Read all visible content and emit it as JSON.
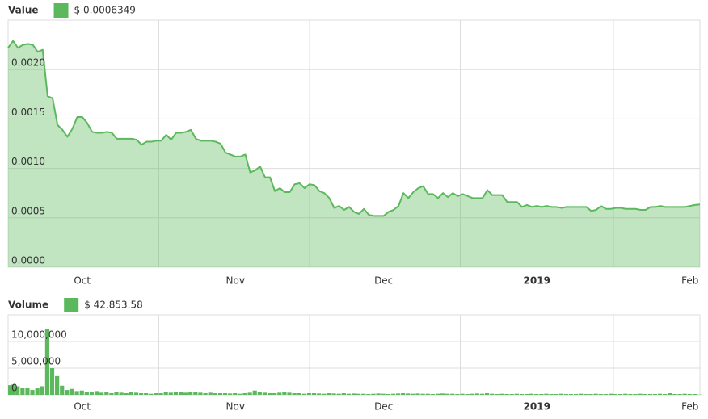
{
  "chart_data": [
    {
      "type": "area",
      "legend_title": "Value",
      "series": [
        {
          "name": "Value",
          "color": "#5cb85c",
          "current_label": "$  0.0006349",
          "values": [
            0.00222,
            0.00229,
            0.00222,
            0.00225,
            0.00226,
            0.00225,
            0.00218,
            0.0022,
            0.00173,
            0.00171,
            0.00144,
            0.00139,
            0.00132,
            0.0014,
            0.00152,
            0.00152,
            0.00146,
            0.00137,
            0.00136,
            0.00136,
            0.00137,
            0.00136,
            0.0013,
            0.0013,
            0.0013,
            0.0013,
            0.00129,
            0.00124,
            0.00127,
            0.00127,
            0.00128,
            0.00128,
            0.00134,
            0.00129,
            0.00136,
            0.00136,
            0.00137,
            0.00139,
            0.0013,
            0.00128,
            0.00128,
            0.00128,
            0.00127,
            0.00125,
            0.00116,
            0.00114,
            0.00112,
            0.00112,
            0.00114,
            0.00096,
            0.00098,
            0.00102,
            0.00091,
            0.00091,
            0.00077,
            0.0008,
            0.00076,
            0.00076,
            0.00084,
            0.00085,
            0.0008,
            0.00084,
            0.00083,
            0.00077,
            0.00075,
            0.0007,
            0.0006,
            0.00062,
            0.00058,
            0.00061,
            0.00056,
            0.00054,
            0.00059,
            0.00053,
            0.00052,
            0.00052,
            0.00052,
            0.00056,
            0.00058,
            0.00062,
            0.00075,
            0.0007,
            0.00076,
            0.0008,
            0.00082,
            0.00074,
            0.00074,
            0.0007,
            0.00075,
            0.00071,
            0.00075,
            0.00072,
            0.00074,
            0.00072,
            0.0007,
            0.0007,
            0.0007,
            0.00078,
            0.00073,
            0.00073,
            0.00073,
            0.00066,
            0.00066,
            0.00066,
            0.00061,
            0.00063,
            0.00061,
            0.00062,
            0.00061,
            0.00062,
            0.00061,
            0.00061,
            0.0006,
            0.00061,
            0.00061,
            0.00061,
            0.00061,
            0.00061,
            0.00057,
            0.00058,
            0.00062,
            0.00059,
            0.00059,
            0.0006,
            0.0006,
            0.00059,
            0.00059,
            0.00059,
            0.00058,
            0.00058,
            0.00061,
            0.00061,
            0.00062,
            0.00061,
            0.00061,
            0.00061,
            0.00061,
            0.00061,
            0.00062,
            0.00063,
            0.0006349
          ]
        }
      ],
      "categories": [
        null,
        null,
        null,
        null,
        null,
        null,
        null,
        null,
        null,
        null,
        null,
        null,
        null,
        null,
        null,
        "Oct",
        null,
        null,
        null,
        null,
        null,
        null,
        null,
        null,
        null,
        null,
        null,
        null,
        null,
        null,
        null,
        null,
        null,
        null,
        null,
        null,
        null,
        null,
        null,
        null,
        null,
        null,
        null,
        null,
        null,
        null,
        "Nov",
        null,
        null,
        null,
        null,
        null,
        null,
        null,
        null,
        null,
        null,
        null,
        null,
        null,
        null,
        null,
        null,
        null,
        null,
        null,
        null,
        null,
        null,
        null,
        null,
        null,
        null,
        null,
        null,
        null,
        "Dec",
        null,
        null,
        null,
        null,
        null,
        null,
        null,
        null,
        null,
        null,
        null,
        null,
        null,
        null,
        null,
        null,
        null,
        null,
        null,
        null,
        null,
        null,
        null,
        null,
        null,
        null,
        null,
        null,
        null,
        null,
        "2019",
        null,
        null,
        null,
        null,
        null,
        null,
        null,
        null,
        null,
        null,
        null,
        null,
        null,
        null,
        null,
        null,
        null,
        null,
        null,
        null,
        null,
        null,
        null,
        null,
        null,
        null,
        null,
        null,
        null,
        null,
        "Feb",
        null,
        null
      ],
      "ylim": [
        0,
        0.0025
      ],
      "yticks": [
        {
          "value": 0,
          "label": "0.0000"
        },
        0.0005,
        {
          "value": 0.001,
          "label": "0.0010"
        },
        0.0015,
        {
          "value": 0.002,
          "label": "0.0020"
        }
      ],
      "grid": true
    },
    {
      "type": "bar",
      "legend_title": "Volume",
      "series": [
        {
          "name": "Volume",
          "color": "#5cb85c",
          "current_label": "$  42,853.58",
          "values": [
            1800000,
            1900000,
            1600000,
            1300000,
            1300000,
            900000,
            1200000,
            1600000,
            12300000,
            5000000,
            3500000,
            1700000,
            900000,
            1100000,
            700000,
            800000,
            600000,
            500000,
            700000,
            400000,
            500000,
            300000,
            600000,
            400000,
            300000,
            500000,
            400000,
            300000,
            300000,
            200000,
            300000,
            300000,
            500000,
            400000,
            600000,
            500000,
            400000,
            600000,
            500000,
            400000,
            300000,
            400000,
            300000,
            300000,
            300000,
            250000,
            300000,
            200000,
            300000,
            400000,
            800000,
            600000,
            400000,
            300000,
            300000,
            400000,
            500000,
            400000,
            300000,
            300000,
            200000,
            300000,
            300000,
            250000,
            200000,
            300000,
            250000,
            200000,
            300000,
            200000,
            250000,
            200000,
            200000,
            150000,
            200000,
            250000,
            200000,
            150000,
            200000,
            250000,
            300000,
            250000,
            200000,
            250000,
            200000,
            200000,
            150000,
            200000,
            250000,
            200000,
            200000,
            150000,
            200000,
            150000,
            200000,
            250000,
            200000,
            300000,
            200000,
            150000,
            200000,
            150000,
            150000,
            200000,
            150000,
            150000,
            200000,
            150000,
            150000,
            200000,
            150000,
            150000,
            200000,
            150000,
            150000,
            150000,
            200000,
            150000,
            150000,
            200000,
            150000,
            150000,
            200000,
            150000,
            150000,
            200000,
            150000,
            150000,
            200000,
            150000,
            150000,
            150000,
            200000,
            150000,
            300000,
            150000,
            150000,
            200000,
            150000,
            150000,
            42853.58
          ]
        }
      ],
      "categories": [
        null,
        null,
        null,
        null,
        null,
        null,
        null,
        null,
        null,
        null,
        null,
        null,
        null,
        null,
        null,
        "Oct",
        null,
        null,
        null,
        null,
        null,
        null,
        null,
        null,
        null,
        null,
        null,
        null,
        null,
        null,
        null,
        null,
        null,
        null,
        null,
        null,
        null,
        null,
        null,
        null,
        null,
        null,
        null,
        null,
        null,
        null,
        "Nov",
        null,
        null,
        null,
        null,
        null,
        null,
        null,
        null,
        null,
        null,
        null,
        null,
        null,
        null,
        null,
        null,
        null,
        null,
        null,
        null,
        null,
        null,
        null,
        null,
        null,
        null,
        null,
        null,
        null,
        "Dec",
        null,
        null,
        null,
        null,
        null,
        null,
        null,
        null,
        null,
        null,
        null,
        null,
        null,
        null,
        null,
        null,
        null,
        null,
        null,
        null,
        null,
        null,
        null,
        null,
        null,
        null,
        null,
        null,
        null,
        null,
        "2019",
        null,
        null,
        null,
        null,
        null,
        null,
        null,
        null,
        null,
        null,
        null,
        null,
        null,
        null,
        null,
        null,
        null,
        null,
        null,
        null,
        null,
        null,
        null,
        null,
        null,
        null,
        null,
        null,
        null,
        null,
        "Feb",
        null,
        null
      ],
      "ylim": [
        0,
        15000000
      ],
      "yticks": [
        0,
        {
          "value": 5000000,
          "label": "5,000,000"
        },
        {
          "value": 10000000,
          "label": "10,000,000"
        }
      ],
      "grid": true
    }
  ]
}
